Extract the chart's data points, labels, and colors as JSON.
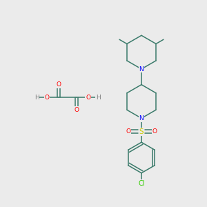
{
  "background_color": "#ebebeb",
  "fig_width": 3.0,
  "fig_height": 3.0,
  "dpi": 100,
  "atom_colors": {
    "N": "#0000ff",
    "O": "#ff0000",
    "S": "#cccc00",
    "Cl": "#33cc00",
    "C": "#3a7a6a",
    "H": "#808080"
  },
  "bond_color": "#3a7a6a",
  "bond_width": 1.1,
  "font_size_atom": 6.5
}
